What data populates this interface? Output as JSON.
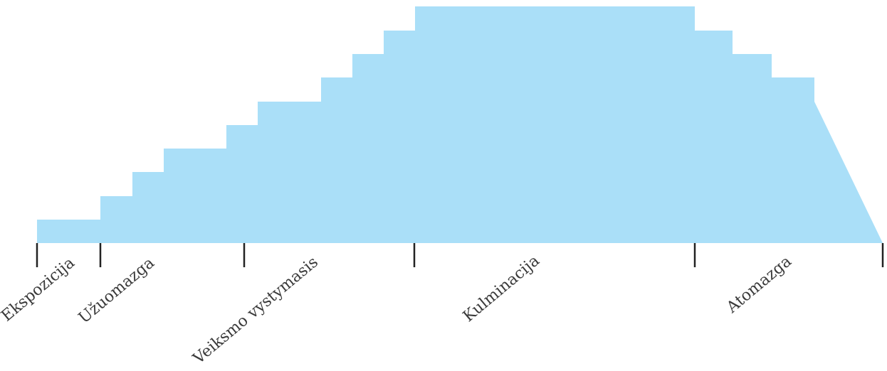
{
  "diagram": {
    "fill_color": "#aadff8",
    "tick_color": "#222222",
    "label_color": "#3a3a3a",
    "stages": [
      {
        "key": "ekspozicija",
        "label": "Ekspozicija"
      },
      {
        "key": "uzuomazga",
        "label": "Užuomazga"
      },
      {
        "key": "veiksmo-vystymasis",
        "label": "Veiksmo vystymasis"
      },
      {
        "key": "kulminacija",
        "label": "Kulminacija"
      },
      {
        "key": "atomazga",
        "label": "Atomazga"
      }
    ]
  }
}
